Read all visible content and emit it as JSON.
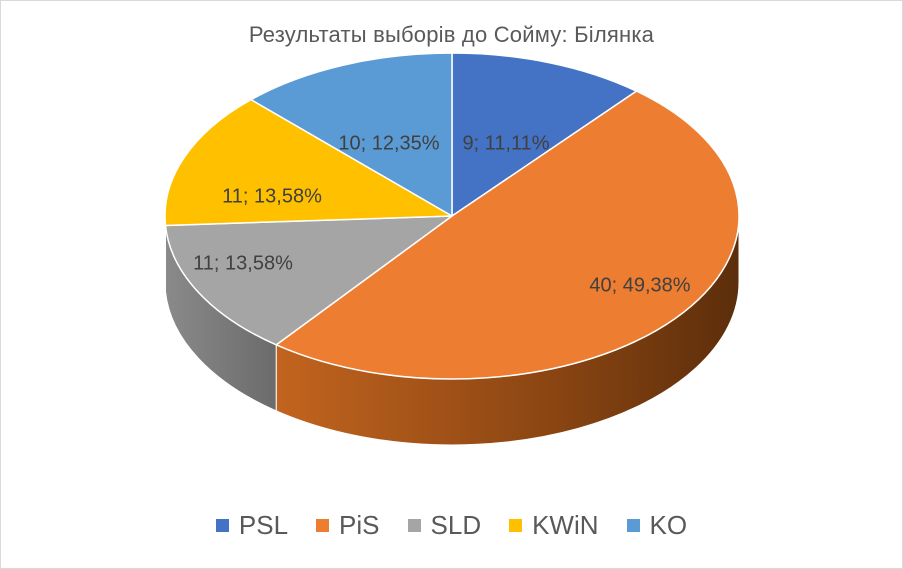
{
  "chart_data": {
    "type": "pie",
    "title": "Результаты выборів до Сойму: Білянка",
    "categories": [
      "PSL",
      "PiS",
      "SLD",
      "KWiN",
      "KO"
    ],
    "values": [
      9,
      40,
      11,
      11,
      10
    ],
    "percent_labels": [
      "9; 11,11%",
      "40; 49,38%",
      "11; 13,58%",
      "11; 13,58%",
      "10; 12,35%"
    ],
    "colors": [
      "#4472C4",
      "#ED7D31",
      "#A5A5A5",
      "#FFC000",
      "#5B9BD5"
    ],
    "legend": "bottom",
    "style": "3d"
  }
}
